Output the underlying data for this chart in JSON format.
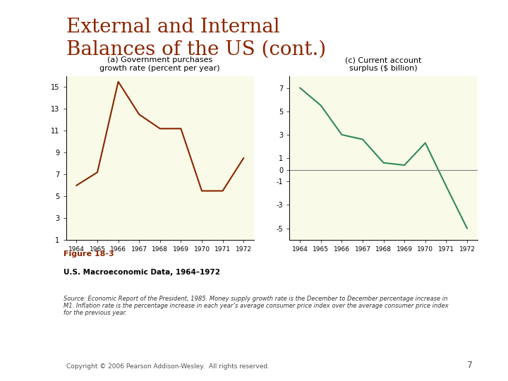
{
  "title": "External and Internal\nBalances of the US (cont.)",
  "title_color": "#8B2500",
  "title_fontsize": 20,
  "background_color": "#FAFAE8",
  "outer_bg": "#FFFFFF",
  "years": [
    1964,
    1965,
    1966,
    1967,
    1968,
    1969,
    1970,
    1971,
    1972
  ],
  "panel_a": {
    "title": "(a) Government purchases\ngrowth rate (percent per year)",
    "data": [
      6.0,
      7.2,
      15.5,
      12.5,
      11.2,
      11.2,
      5.5,
      5.5,
      8.5
    ],
    "color": "#8B2500",
    "yticks": [
      1,
      3,
      5,
      7,
      9,
      11,
      13,
      15
    ],
    "ylim": [
      1,
      16
    ],
    "xlabel_years": [
      "1964",
      "1965",
      "1966",
      "1967",
      "1968",
      "1969",
      "1970",
      "1971",
      "1972"
    ]
  },
  "panel_c": {
    "title": "(c) Current account\nsurplus ($ billion)",
    "data": [
      7.0,
      5.5,
      3.0,
      2.6,
      0.6,
      0.4,
      2.3,
      -1.4,
      -5.0
    ],
    "color": "#2E8B57",
    "yticks": [
      -5,
      -3,
      -1,
      0,
      1,
      3,
      5,
      7
    ],
    "ylim": [
      -6,
      8
    ],
    "xlabel_years": [
      "1964",
      "1965",
      "1966",
      "1967",
      "1968",
      "1969",
      "1970",
      "1971",
      "1972"
    ]
  },
  "figure_label": "Figure 18-3",
  "figure_sublabel": "U.S. Macroeconomic Data, 1964–1972",
  "source_text": "Source: Economic Report of the President, 1985. Money supply growth rate is the December to December percentage increase in\nM1. Inflation rate is the percentage increase in each year’s average consumer price index over the average consumer price index\nfor the previous year.",
  "copyright_text": "Copyright © 2006 Pearson Addison-Wesley.  All rights reserved.",
  "page_number": "7"
}
